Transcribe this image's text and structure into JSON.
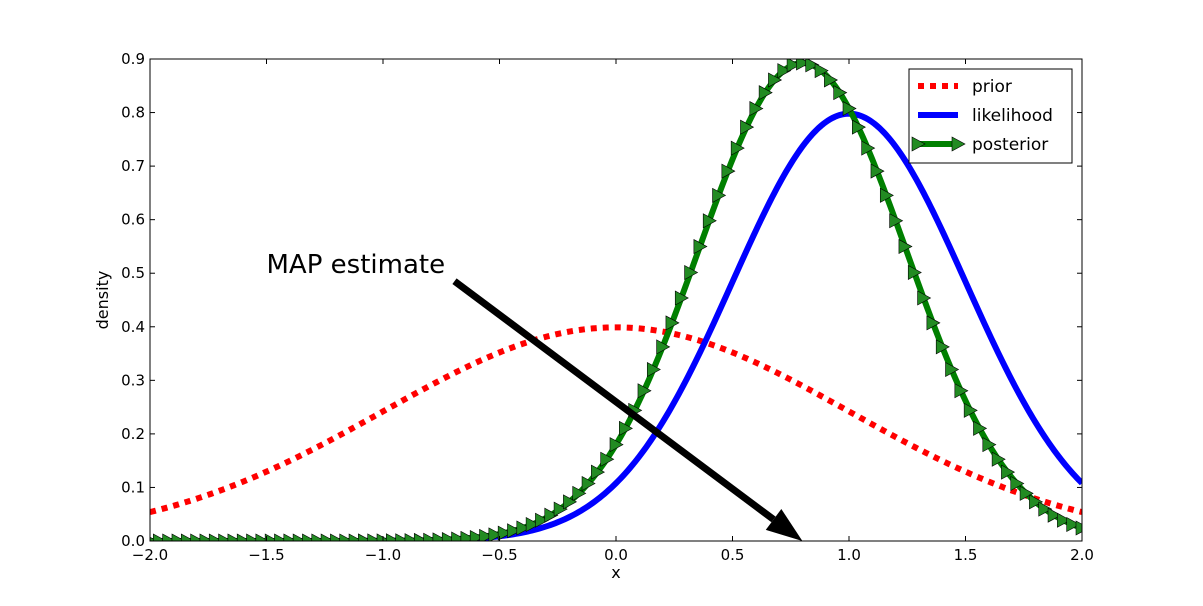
{
  "chart_data": {
    "type": "line",
    "title": "",
    "xlabel": "x",
    "ylabel": "density",
    "xlim": [
      -2.0,
      2.0
    ],
    "ylim": [
      0.0,
      0.9
    ],
    "x_ticks": [
      "−2.0",
      "−1.5",
      "−1.0",
      "−0.5",
      "0.0",
      "0.5",
      "1.0",
      "1.5",
      "2.0"
    ],
    "y_ticks": [
      "0.0",
      "0.1",
      "0.2",
      "0.3",
      "0.4",
      "0.5",
      "0.6",
      "0.7",
      "0.8",
      "0.9"
    ],
    "grid": false,
    "legend_position": "top-right",
    "series": [
      {
        "name": "prior",
        "style": "dotted",
        "color": "#ff0000",
        "distribution": {
          "kind": "normal",
          "mean": 0.0,
          "std": 1.0
        },
        "x": [
          -2.0,
          -1.5,
          -1.0,
          -0.5,
          0.0,
          0.5,
          1.0,
          1.5,
          2.0
        ],
        "values": [
          0.054,
          0.13,
          0.242,
          0.352,
          0.399,
          0.352,
          0.242,
          0.13,
          0.054
        ]
      },
      {
        "name": "likelihood",
        "style": "solid",
        "color": "#0000ff",
        "distribution": {
          "kind": "normal",
          "mean": 1.0,
          "std": 0.5
        },
        "x": [
          -2.0,
          -1.5,
          -1.0,
          -0.5,
          0.0,
          0.5,
          1.0,
          1.5,
          2.0
        ],
        "values": [
          0.0,
          0.0,
          0.0,
          0.009,
          0.108,
          0.484,
          0.798,
          0.484,
          0.108
        ]
      },
      {
        "name": "posterior",
        "style": "solid-with-triangle-markers",
        "color": "#008000",
        "distribution": {
          "kind": "normal",
          "mean": 0.8,
          "std": 0.447
        },
        "x": [
          -2.0,
          -1.5,
          -1.0,
          -0.5,
          0.0,
          0.5,
          0.8,
          1.0,
          1.5,
          2.0
        ],
        "values": [
          0.0,
          0.0,
          0.0,
          0.013,
          0.181,
          0.713,
          0.892,
          0.806,
          0.26,
          0.023
        ]
      }
    ],
    "annotations": [
      {
        "text": "MAP estimate",
        "text_at": [
          -1.5,
          0.5
        ],
        "arrow_to": [
          0.8,
          0.0
        ]
      }
    ]
  }
}
